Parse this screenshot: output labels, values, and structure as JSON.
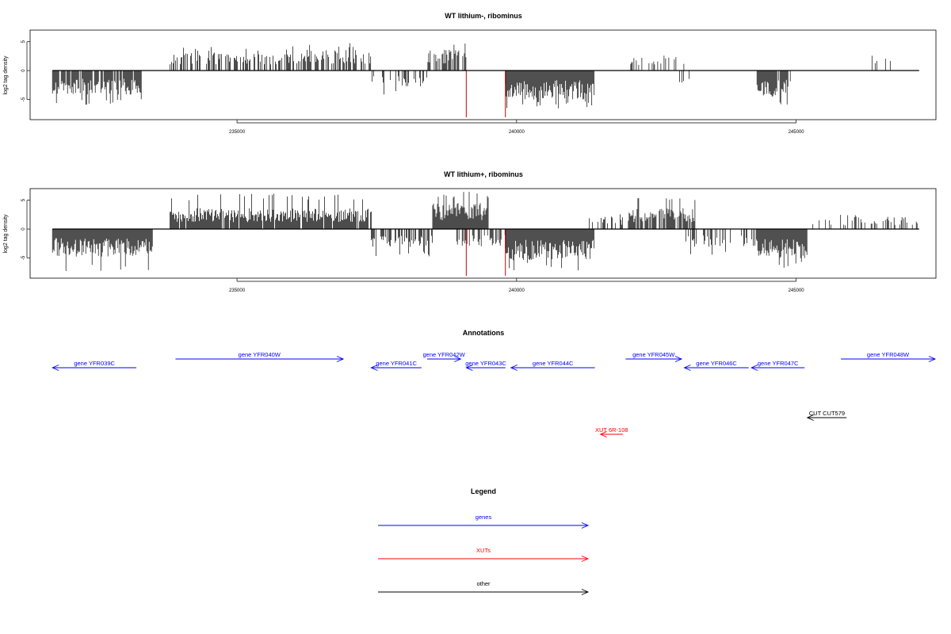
{
  "chart_data": [
    {
      "type": "bar",
      "title": "WT lithium-, ribominus",
      "ylabel": "log2 tag density",
      "xlabel": "",
      "xlim": [
        231300,
        247500
      ],
      "ylim": [
        -8.5,
        7
      ],
      "x_ticks": [
        235000,
        240000,
        245000
      ],
      "y_ticks": [
        -5,
        0,
        5
      ],
      "x_tick_labels": [
        "235000",
        "240000",
        "245000"
      ],
      "y_tick_labels": [
        "-5",
        "0",
        "5"
      ],
      "grid": false,
      "segments": [
        {
          "start": 231700,
          "end": 233300,
          "strand": "minus",
          "density": 0.9,
          "amp": 3.5,
          "max": 6.0
        },
        {
          "start": 233800,
          "end": 236100,
          "strand": "plus",
          "density": 0.55,
          "amp": 2.6,
          "max": 4.2
        },
        {
          "start": 236100,
          "end": 237400,
          "strand": "plus",
          "density": 0.65,
          "amp": 3.0,
          "max": 4.8
        },
        {
          "start": 237400,
          "end": 238400,
          "strand": "minus",
          "density": 0.35,
          "amp": 2.4,
          "max": 4.4
        },
        {
          "start": 238400,
          "end": 239100,
          "strand": "plus",
          "density": 0.7,
          "amp": 3.0,
          "max": 5.0
        },
        {
          "start": 239800,
          "end": 241400,
          "strand": "minus",
          "density": 1.0,
          "amp": 4.2,
          "max": 6.6
        },
        {
          "start": 242000,
          "end": 243000,
          "strand": "plus",
          "density": 0.22,
          "amp": 2.0,
          "max": 2.8
        },
        {
          "start": 242900,
          "end": 243500,
          "strand": "minus",
          "density": 0.1,
          "amp": 2.5,
          "max": 3.5
        },
        {
          "start": 244300,
          "end": 244900,
          "strand": "minus",
          "density": 0.9,
          "amp": 3.8,
          "max": 6.0
        },
        {
          "start": 246300,
          "end": 246800,
          "strand": "plus",
          "density": 0.12,
          "amp": 2.5,
          "max": 4.0
        }
      ],
      "highlights": [
        {
          "x": 239100,
          "value": -8.5
        },
        {
          "x": 239800,
          "value": -8.5
        }
      ]
    },
    {
      "type": "bar",
      "title": "WT lithium+, ribominus",
      "ylabel": "log2 tag density",
      "xlabel": "",
      "xlim": [
        231300,
        247500
      ],
      "ylim": [
        -8.5,
        7
      ],
      "x_ticks": [
        235000,
        240000,
        245000
      ],
      "y_ticks": [
        -5,
        0,
        5
      ],
      "x_tick_labels": [
        "235000",
        "240000",
        "245000"
      ],
      "y_tick_labels": [
        "-5",
        "0",
        "5"
      ],
      "grid": false,
      "segments": [
        {
          "start": 231700,
          "end": 233500,
          "strand": "minus",
          "density": 1.0,
          "amp": 4.0,
          "max": 7.5
        },
        {
          "start": 233800,
          "end": 237400,
          "strand": "plus",
          "density": 0.95,
          "amp": 3.0,
          "max": 6.2
        },
        {
          "start": 237400,
          "end": 238500,
          "strand": "minus",
          "density": 0.6,
          "amp": 2.6,
          "max": 4.8
        },
        {
          "start": 238500,
          "end": 239500,
          "strand": "plus",
          "density": 1.0,
          "amp": 3.8,
          "max": 6.5
        },
        {
          "start": 238900,
          "end": 239800,
          "strand": "minus",
          "density": 0.5,
          "amp": 2.5,
          "max": 4.0
        },
        {
          "start": 239800,
          "end": 241400,
          "strand": "minus",
          "density": 1.0,
          "amp": 4.5,
          "max": 7.2
        },
        {
          "start": 241300,
          "end": 241900,
          "strand": "plus",
          "density": 0.4,
          "amp": 1.8,
          "max": 3.0
        },
        {
          "start": 242000,
          "end": 243200,
          "strand": "plus",
          "density": 0.8,
          "amp": 3.0,
          "max": 5.6
        },
        {
          "start": 243000,
          "end": 244300,
          "strand": "minus",
          "density": 0.45,
          "amp": 2.6,
          "max": 4.5
        },
        {
          "start": 244300,
          "end": 245200,
          "strand": "minus",
          "density": 1.0,
          "amp": 4.2,
          "max": 7.0
        },
        {
          "start": 245200,
          "end": 246000,
          "strand": "plus",
          "density": 0.15,
          "amp": 1.5,
          "max": 2.5
        },
        {
          "start": 246000,
          "end": 247200,
          "strand": "plus",
          "density": 0.4,
          "amp": 1.8,
          "max": 3.0
        }
      ],
      "highlights": [
        {
          "x": 239100,
          "value": -8.5
        },
        {
          "x": 239800,
          "value": -8.5
        }
      ]
    }
  ],
  "annotations": {
    "title": "Annotations",
    "features": [
      {
        "label": "gene YFR039C",
        "start": 231700,
        "end": 233200,
        "strand": "-",
        "row": 1,
        "kind": "gene"
      },
      {
        "label": "gene YFR040W",
        "start": 233900,
        "end": 236900,
        "strand": "+",
        "row": 0,
        "kind": "gene"
      },
      {
        "label": "gene YFR041C",
        "start": 237400,
        "end": 238300,
        "strand": "-",
        "row": 1,
        "kind": "gene"
      },
      {
        "label": "gene YFR042W",
        "start": 238400,
        "end": 239000,
        "strand": "+",
        "row": 0,
        "kind": "gene"
      },
      {
        "label": "gene YFR043C",
        "start": 239100,
        "end": 239800,
        "strand": "-",
        "row": 1,
        "kind": "gene"
      },
      {
        "label": "gene YFR044C",
        "start": 239900,
        "end": 241400,
        "strand": "-",
        "row": 1,
        "kind": "gene"
      },
      {
        "label": "gene YFR045W",
        "start": 241950,
        "end": 242950,
        "strand": "+",
        "row": 0,
        "kind": "gene"
      },
      {
        "label": "gene YFR046C",
        "start": 243000,
        "end": 244150,
        "strand": "-",
        "row": 1,
        "kind": "gene"
      },
      {
        "label": "gene YFR047C",
        "start": 244200,
        "end": 245150,
        "strand": "-",
        "row": 1,
        "kind": "gene"
      },
      {
        "label": "gene YFR048W",
        "start": 245800,
        "end": 247500,
        "strand": "+",
        "row": 0,
        "kind": "gene"
      },
      {
        "label": "CUT CUT579",
        "start": 245200,
        "end": 245900,
        "strand": "-",
        "row": 2,
        "kind": "other"
      },
      {
        "label": "XUT 6R-108",
        "start": 241500,
        "end": 241900,
        "strand": "-",
        "row": 3,
        "kind": "xut"
      }
    ]
  },
  "legend": {
    "title": "Legend",
    "items": [
      {
        "label": "genes",
        "kind": "gene"
      },
      {
        "label": "XUTs",
        "kind": "xut"
      },
      {
        "label": "other",
        "kind": "other"
      }
    ]
  },
  "colors": {
    "gene": "#0000ff",
    "xut": "#ff0000",
    "other": "#000000",
    "bars": "#000000",
    "highlight": "#cc0000"
  }
}
